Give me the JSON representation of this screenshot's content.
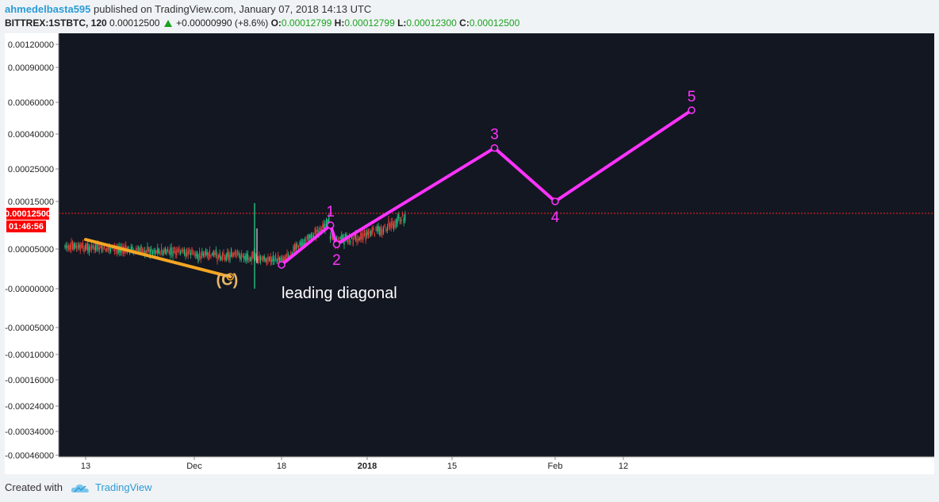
{
  "header": {
    "author": "ahmedelbasta595",
    "published_text": "published on TradingView.com, January 07, 2018 14:13 UTC",
    "symbol": "BITTREX:1STBTC, 120",
    "price": "0.00012500",
    "change": "+0.00000990 (+8.6%)",
    "open_label": "O:",
    "open": "0.00012799",
    "high_label": "H:",
    "high": "0.00012799",
    "low_label": "L:",
    "low": "0.00012300",
    "close_label": "C:",
    "close": "0.00012500"
  },
  "footer": {
    "created_with": "Created with",
    "brand": "TradingView"
  },
  "colors": {
    "background": "#131722",
    "wave": "#ff33ff",
    "trend": "#f5a623",
    "price_line": "#ff2222",
    "candle_up": "#26c281",
    "candle_down": "#e8433a",
    "axis_text": "#222222"
  },
  "chart_data": {
    "type": "line",
    "title": "",
    "y_axis_labels": [
      "0.00120000",
      "0.00090000",
      "0.00060000",
      "0.00040000",
      "0.00025000",
      "0.00015000",
      "0.00005000",
      "-0.00000000",
      "-0.00005000",
      "-0.00010000",
      "-0.00016000",
      "-0.00024000",
      "-0.00034000",
      "-0.00046000"
    ],
    "y_axis_values": [
      0.0012,
      0.0009,
      0.0006,
      0.0004,
      0.00025,
      0.00015,
      5e-05,
      0,
      -5e-05,
      -0.0001,
      -0.00016,
      -0.00024,
      -0.00034,
      -0.00046
    ],
    "x_axis_labels": [
      "13",
      "Dec",
      "18",
      "2018",
      "15",
      "Feb",
      "12"
    ],
    "x_axis_dates": [
      "2017-11-13",
      "2017-12-01",
      "2017-12-18",
      "2018-01-01",
      "2018-01-15",
      "2018-02-01",
      "2018-02-12"
    ],
    "current_price_label": "0.00012500",
    "current_price": 0.000125,
    "countdown_label": "01:46:56",
    "series": [
      {
        "name": "",
        "kind": "elliott-wave",
        "points": [
          {
            "x": "2017-12-18",
            "y": 3e-05,
            "label": ""
          },
          {
            "x": "2017-12-26",
            "y": 0.0001,
            "label": "1"
          },
          {
            "x": "2017-12-27",
            "y": 6e-05,
            "label": "2"
          },
          {
            "x": "2018-01-22",
            "y": 0.00034,
            "label": "3"
          },
          {
            "x": "2018-02-01",
            "y": 0.00015,
            "label": "4"
          },
          {
            "x": "2018-02-23",
            "y": 0.00055,
            "label": "5"
          }
        ]
      },
      {
        "name": "",
        "kind": "trendline",
        "points": [
          {
            "x": "2017-11-13",
            "y": 7e-05
          },
          {
            "x": "2017-12-08",
            "y": 1.5e-05
          }
        ]
      }
    ],
    "annotations": [
      {
        "text": "leading diagonal",
        "x": "2017-12-18",
        "y": -1.2e-05
      },
      {
        "text": "(C)",
        "x": "2017-12-08",
        "y": 4.5e-06
      }
    ],
    "grid": false
  }
}
